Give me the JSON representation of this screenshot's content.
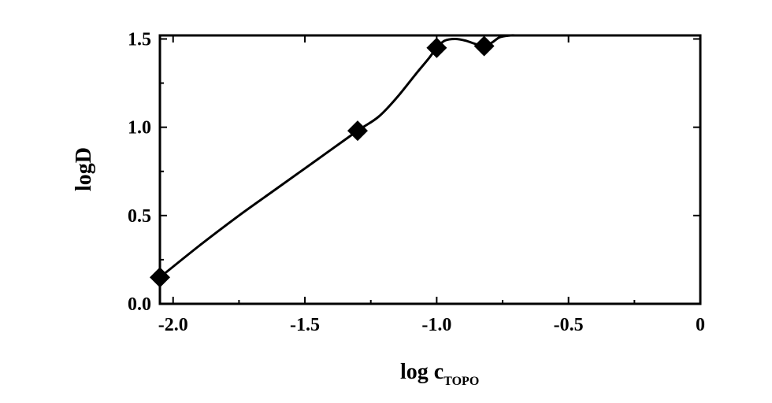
{
  "chart_data": {
    "type": "line",
    "xlabel": "log c",
    "xlabel_subscript": "TOPO",
    "ylabel": "logD",
    "xlim": [
      -2.05,
      0
    ],
    "ylim": [
      0,
      1.52
    ],
    "x_ticks": [
      -2.0,
      -1.5,
      -1.0,
      -0.5,
      0
    ],
    "x_tick_labels": [
      "-2.0",
      "-1.5",
      "-1.0",
      "-0.5",
      "0"
    ],
    "y_ticks": [
      0.0,
      0.5,
      1.0,
      1.5
    ],
    "y_tick_labels": [
      "0.0",
      "0.5",
      "1.0",
      "1.5"
    ],
    "series": [
      {
        "marker": "diamond",
        "x": [
          -2.05,
          -1.3,
          -1.0,
          -0.82
        ],
        "y": [
          0.15,
          0.98,
          1.45,
          1.46
        ]
      }
    ],
    "curve": {
      "x": [
        -2.05,
        -1.9,
        -1.75,
        -1.6,
        -1.45,
        -1.3,
        -1.22,
        -1.15,
        -1.08,
        -1.03,
        -1.0,
        -0.97,
        -0.93,
        -0.89,
        -0.85,
        -0.82,
        -0.79,
        -0.76,
        -0.72,
        -0.7
      ],
      "y": [
        0.15,
        0.33,
        0.5,
        0.66,
        0.82,
        0.98,
        1.06,
        1.17,
        1.3,
        1.39,
        1.45,
        1.49,
        1.5,
        1.49,
        1.47,
        1.46,
        1.48,
        1.51,
        1.52,
        1.52
      ]
    },
    "grid": false,
    "colors": {
      "line": "#000000",
      "marker": "#000000",
      "axes": "#000000"
    }
  }
}
